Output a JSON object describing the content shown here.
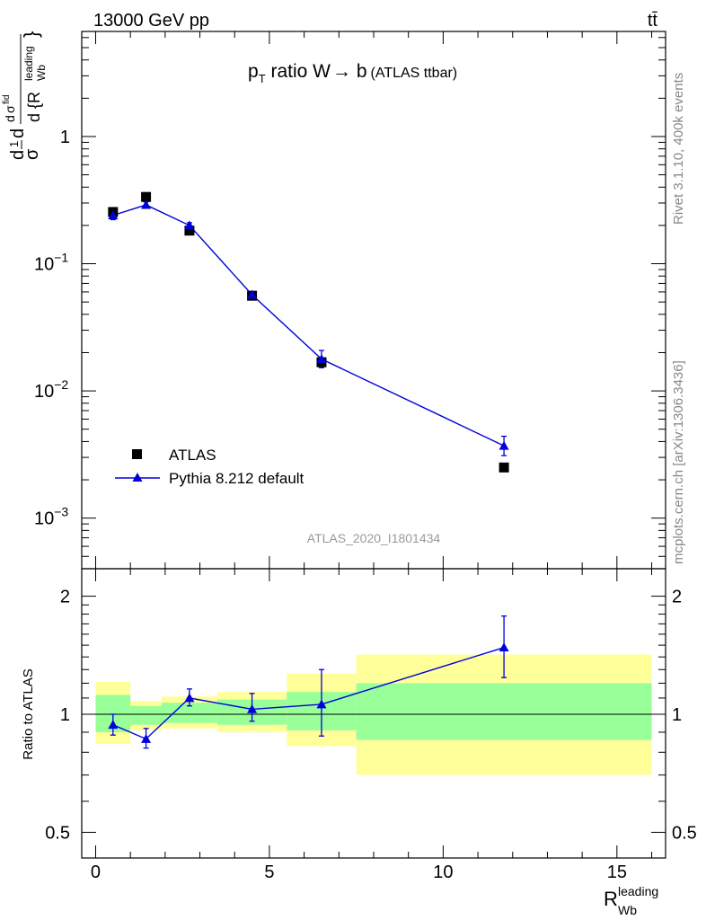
{
  "header": {
    "left": "13000 GeV pp",
    "right": "tt̄"
  },
  "side": {
    "version": "Rivet 3.1.10,  400k events",
    "site": "mcplots.cern.ch [arXiv:1306.3436]"
  },
  "watermark": "ATLAS_2020_I1801434",
  "chart_data": [
    {
      "type": "scatter",
      "title": {
        "p": "p",
        "T": "T",
        "rest": " ratio W",
        "arrow": "→",
        "b": " b",
        "small": "(ATLAS ttbar)"
      },
      "ylabel": {
        "d1": "d",
        "sigma1": "σ",
        "one": "1",
        "d2": "d",
        "sigma2": "σ",
        "d3": "d",
        "fid": "fid",
        "dbig": "d {R",
        "Wb": "Wb",
        "leading": "leading",
        "brace": "}"
      },
      "xlim": [
        -0.4,
        16.4
      ],
      "ylim": [
        0.0004,
        6.7
      ],
      "yscale": "log",
      "yticks": [
        {
          "value": 0.001,
          "label": "10",
          "exp": "−3"
        },
        {
          "value": 0.01,
          "label": "10",
          "exp": "−2"
        },
        {
          "value": 0.1,
          "label": "10",
          "exp": "−1"
        },
        {
          "value": 1,
          "label": "1",
          "exp": ""
        }
      ],
      "legend": {
        "position": "bottom-left",
        "entries": [
          {
            "label": "ATLAS"
          },
          {
            "label": "Pythia 8.212 default"
          }
        ]
      },
      "series": [
        {
          "name": "ATLAS",
          "color": "#000000",
          "marker": "square",
          "x": [
            0.5,
            1.45,
            2.7,
            4.5,
            6.5,
            11.75
          ],
          "y": [
            0.255,
            0.335,
            0.182,
            0.056,
            0.0168,
            0.0025
          ]
        },
        {
          "name": "Pythia 8.212 default",
          "color": "#0000dd",
          "marker": "triangle",
          "x": [
            0.5,
            1.45,
            2.7,
            4.5,
            6.5,
            11.75
          ],
          "y": [
            0.24,
            0.29,
            0.2,
            0.057,
            0.0178,
            0.0037
          ],
          "yerr_low": [
            0.222,
            0.274,
            0.19,
            0.0535,
            0.0152,
            0.0031
          ],
          "yerr_high": [
            0.258,
            0.306,
            0.21,
            0.0605,
            0.0208,
            0.0044
          ]
        }
      ]
    },
    {
      "type": "scatter",
      "ylabel": "Ratio to ATLAS",
      "xlabel": {
        "R": "R",
        "sub": "Wb",
        "sup": "leading"
      },
      "xlim": [
        -0.4,
        16.4
      ],
      "ylim": [
        0.43,
        2.35
      ],
      "yscale": "log",
      "xticks": [
        {
          "value": 0,
          "label": "0"
        },
        {
          "value": 5,
          "label": "5"
        },
        {
          "value": 10,
          "label": "10"
        },
        {
          "value": 15,
          "label": "15"
        }
      ],
      "yticks": [
        {
          "value": 0.5,
          "label": "0.5"
        },
        {
          "value": 1,
          "label": "1"
        },
        {
          "value": 2,
          "label": "2"
        }
      ],
      "bands": [
        {
          "x0": 0,
          "x1": 1,
          "yellow": [
            0.84,
            1.21
          ],
          "green": [
            0.9,
            1.12
          ]
        },
        {
          "x0": 1,
          "x1": 1.9,
          "yellow": [
            0.91,
            1.08
          ],
          "green": [
            0.94,
            1.05
          ]
        },
        {
          "x0": 1.9,
          "x1": 3.5,
          "yellow": [
            0.92,
            1.11
          ],
          "green": [
            0.95,
            1.07
          ]
        },
        {
          "x0": 3.5,
          "x1": 5.5,
          "yellow": [
            0.9,
            1.14
          ],
          "green": [
            0.94,
            1.09
          ]
        },
        {
          "x0": 5.5,
          "x1": 7.5,
          "yellow": [
            0.83,
            1.27
          ],
          "green": [
            0.91,
            1.14
          ]
        },
        {
          "x0": 7.5,
          "x1": 16,
          "yellow": [
            0.7,
            1.42
          ],
          "green": [
            0.86,
            1.2
          ]
        }
      ],
      "series": [
        {
          "name": "Pythia 8.212 default",
          "color": "#0000dd",
          "x": [
            0.5,
            1.45,
            2.7,
            4.5,
            6.5,
            11.75
          ],
          "y": [
            0.94,
            0.865,
            1.1,
            1.03,
            1.06,
            1.48
          ],
          "yerr_low": [
            0.885,
            0.82,
            1.05,
            0.96,
            0.88,
            1.24
          ],
          "yerr_high": [
            1.0,
            0.92,
            1.16,
            1.13,
            1.3,
            1.78
          ]
        }
      ]
    }
  ]
}
